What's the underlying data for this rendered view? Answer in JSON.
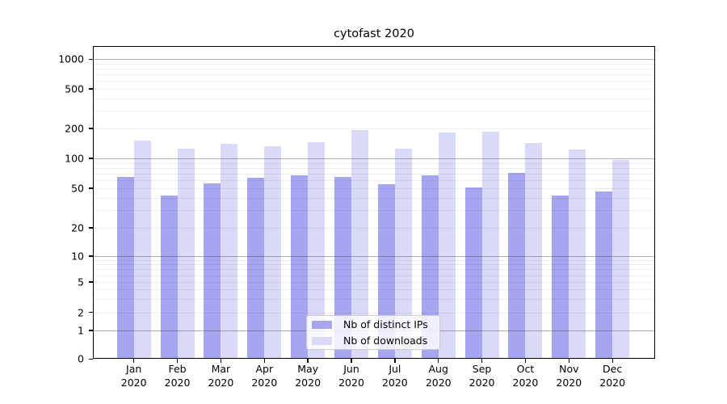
{
  "title": "cytofast 2020",
  "y_axis": {
    "tick_labels": [
      "0",
      "1",
      "2",
      "5",
      "10",
      "20",
      "50",
      "100",
      "200",
      "500",
      "1000"
    ]
  },
  "x_axis": {
    "year": "2020",
    "months": [
      "Jan",
      "Feb",
      "Mar",
      "Apr",
      "May",
      "Jun",
      "Jul",
      "Aug",
      "Sep",
      "Oct",
      "Nov",
      "Dec"
    ]
  },
  "legend": {
    "items": [
      {
        "label": "Nb of distinct IPs",
        "color": "#a5a5f0"
      },
      {
        "label": "Nb of downloads",
        "color": "#d9d9f8"
      }
    ]
  },
  "chart_data": {
    "type": "bar",
    "title": "cytofast 2020",
    "categories": [
      "Jan 2020",
      "Feb 2020",
      "Mar 2020",
      "Apr 2020",
      "May 2020",
      "Jun 2020",
      "Jul 2020",
      "Aug 2020",
      "Sep 2020",
      "Oct 2020",
      "Nov 2020",
      "Dec 2020"
    ],
    "series": [
      {
        "name": "Nb of distinct IPs",
        "color": "#a5a5f0",
        "values": [
          65,
          42,
          56,
          64,
          68,
          65,
          55,
          68,
          51,
          71,
          42,
          46
        ]
      },
      {
        "name": "Nb of downloads",
        "color": "#d9d9f8",
        "values": [
          150,
          125,
          140,
          133,
          146,
          194,
          125,
          181,
          185,
          143,
          124,
          97
        ]
      }
    ],
    "xlabel": "",
    "ylabel": "",
    "yscale": "log-like with 0 baseline",
    "y_ticks": [
      0,
      1,
      2,
      5,
      10,
      20,
      50,
      100,
      200,
      500,
      1000
    ],
    "ylim": [
      0,
      1200
    ],
    "grid": true,
    "legend_position": "lower center"
  }
}
